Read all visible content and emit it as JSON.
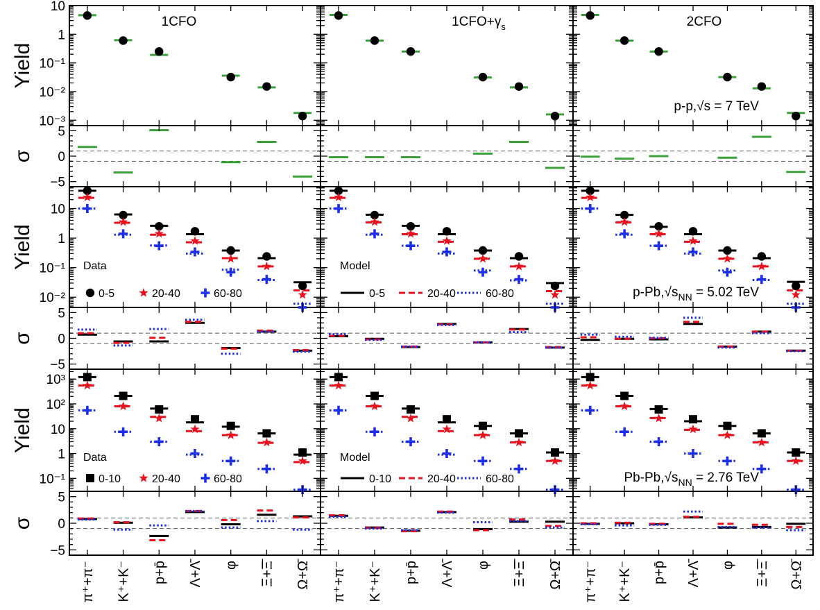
{
  "chart_data": {
    "type": "scatter",
    "columns": [
      "1CFO",
      "1CFO+γ",
      "2CFO"
    ],
    "column_title_subscripts": [
      "",
      "s",
      ""
    ],
    "categories": [
      "π⁺+π⁻",
      "K⁺+K⁻",
      "p+p̄",
      "Λ+Λ̄",
      "φ",
      "Ξ+Ξ̄",
      "Ω+Ω̄"
    ],
    "row_labels": {
      "yield": "Yield",
      "sigma": "σ"
    },
    "sigma_ticks": [
      "5",
      "0",
      "−5"
    ],
    "sigma_guides": [
      1,
      -1
    ],
    "systems": [
      {
        "id": "pp",
        "label": "p-p,√s = 7 TeV",
        "ylim": [
          0.00065,
          10
        ],
        "yticks": [
          {
            "v": 10,
            "t": "10"
          },
          {
            "v": 1,
            "t": "1"
          },
          {
            "v": 0.1,
            "t": "10⁻¹"
          },
          {
            "v": 0.01,
            "t": "10⁻²"
          },
          {
            "v": 0.001,
            "t": "10⁻³"
          }
        ],
        "data_legend_title": "",
        "model_legend_title": "",
        "data_legend": [],
        "model_legend": [],
        "data": [
          [
            4.5,
            0.6,
            0.25,
            null,
            0.032,
            0.015,
            0.0014
          ]
        ],
        "model": [
          [
            [
              4.6,
              0.62,
              0.19,
              null,
              0.036,
              0.014,
              0.0018
            ]
          ],
          [
            [
              4.7,
              0.6,
              0.25,
              null,
              0.031,
              0.014,
              0.0016
            ]
          ],
          [
            [
              4.7,
              0.6,
              0.25,
              null,
              0.032,
              0.013,
              0.0018
            ]
          ]
        ],
        "sigma": [
          [
            [
              1.8,
              -3.2,
              5.1,
              null,
              -1.2,
              2.8,
              -4.0
            ]
          ],
          [
            [
              -0.2,
              -0.2,
              -0.2,
              null,
              0.5,
              2.8,
              -2.3
            ]
          ],
          [
            [
              -0.1,
              -0.5,
              0.0,
              null,
              -0.3,
              3.8,
              -3.1
            ]
          ]
        ]
      },
      {
        "id": "ppb",
        "label": "p-Pb,√s",
        "label_sub": "NN",
        "label_rest": " = 5.02 TeV",
        "ylim": [
          0.0045,
          55
        ],
        "yticks": [
          {
            "v": 10,
            "t": "10"
          },
          {
            "v": 1,
            "t": "1"
          },
          {
            "v": 0.1,
            "t": "10⁻¹"
          },
          {
            "v": 0.01,
            "t": "10⁻²"
          }
        ],
        "data_legend_title": "Data",
        "model_legend_title": "Model",
        "data_legend": [
          "0-5",
          "20-40",
          "60-80"
        ],
        "model_legend": [
          "0-5",
          "20-40",
          "60-80"
        ],
        "data": [
          [
            40,
            6.0,
            2.5,
            1.7,
            0.38,
            0.24,
            0.024
          ],
          [
            24,
            3.5,
            1.4,
            0.8,
            0.2,
            0.11,
            0.012
          ],
          [
            10,
            1.4,
            0.55,
            0.34,
            0.07,
            0.04,
            0.0045
          ]
        ],
        "model": [
          [
            [
              40,
              6.3,
              2.6,
              1.35,
              0.38,
              0.21,
              0.032
            ],
            [
              23,
              3.3,
              1.3,
              0.72,
              0.21,
              0.11,
              0.017
            ],
            [
              10,
              1.3,
              0.56,
              0.3,
              0.085,
              0.038,
              0.006
            ]
          ],
          [
            [
              40,
              6.2,
              2.6,
              1.35,
              0.38,
              0.21,
              0.03
            ],
            [
              23,
              3.4,
              1.35,
              0.75,
              0.2,
              0.11,
              0.016
            ],
            [
              10,
              1.3,
              0.55,
              0.3,
              0.08,
              0.037,
              0.006
            ]
          ],
          [
            [
              40,
              6.1,
              2.4,
              1.35,
              0.38,
              0.21,
              0.033
            ],
            [
              23,
              3.4,
              1.35,
              0.75,
              0.2,
              0.11,
              0.017
            ],
            [
              10,
              1.3,
              0.55,
              0.3,
              0.08,
              0.038,
              0.006
            ]
          ]
        ],
        "sigma": [
          [
            [
              0.7,
              -0.6,
              -0.6,
              3.0,
              -1.9,
              1.3,
              -2.4
            ],
            [
              1.0,
              -0.9,
              0.1,
              3.2,
              -2.0,
              1.5,
              -2.3
            ],
            [
              1.7,
              -1.4,
              1.8,
              3.6,
              -3.0,
              1.3,
              -2.6
            ]
          ],
          [
            [
              0.4,
              -0.1,
              -1.7,
              2.8,
              -0.8,
              1.8,
              -1.8
            ],
            [
              0.5,
              -0.2,
              -1.6,
              2.7,
              -0.8,
              1.7,
              -1.7
            ],
            [
              0.8,
              -0.3,
              -1.6,
              2.6,
              -0.8,
              1.2,
              -1.8
            ]
          ],
          [
            [
              -0.3,
              -0.1,
              -0.2,
              2.8,
              -1.6,
              1.3,
              -2.4
            ],
            [
              0.2,
              -0.1,
              0.0,
              3.2,
              -1.6,
              1.3,
              -2.4
            ],
            [
              0.7,
              0.3,
              0.1,
              4.0,
              -1.8,
              1.0,
              -2.5
            ]
          ]
        ]
      },
      {
        "id": "pbpb",
        "label": "Pb-Pb,√s",
        "label_sub": "NN",
        "label_rest": " = 2.76 TeV",
        "ylim": [
          0.03,
          2500
        ],
        "yticks": [
          {
            "v": 1000,
            "t": "10³"
          },
          {
            "v": 100,
            "t": "10²"
          },
          {
            "v": 10,
            "t": "10"
          },
          {
            "v": 1,
            "t": "1"
          },
          {
            "v": 0.1,
            "t": "10⁻¹"
          }
        ],
        "data_legend_title": "Data",
        "model_legend_title": "Model",
        "data_legend": [
          "0-10",
          "20-40",
          "60-80"
        ],
        "model_legend": [
          "0-10",
          "20-40",
          "60-80"
        ],
        "data": [
          [
            1200,
            210,
            60,
            24,
            13,
            6.5,
            1.1
          ],
          [
            550,
            80,
            26,
            9.5,
            5.5,
            2.8,
            0.5
          ],
          [
            55,
            7.5,
            3.0,
            1.0,
            0.5,
            0.24,
            0.035
          ]
        ],
        "model": [
          [
            [
              1200,
              210,
              65,
              18,
              12,
              6.5,
              0.9
            ],
            [
              550,
              80,
              30,
              8,
              5.5,
              2.7,
              0.45
            ],
            [
              55,
              7.5,
              3.0,
              0.9,
              0.5,
              0.24,
              0.035
            ]
          ],
          [
            [
              1200,
              210,
              65,
              18,
              13,
              6.5,
              1.1
            ],
            [
              550,
              80,
              30,
              8,
              5.5,
              2.8,
              0.5
            ],
            [
              55,
              7.5,
              3.0,
              0.9,
              0.5,
              0.24,
              0.035
            ]
          ],
          [
            [
              1200,
              210,
              62,
              20,
              13,
              6.5,
              1.1
            ],
            [
              550,
              80,
              27,
              9,
              5.5,
              2.8,
              0.5
            ],
            [
              55,
              7.5,
              3.0,
              1.0,
              0.5,
              0.24,
              0.035
            ]
          ]
        ],
        "sigma": [
          [
            [
              0.8,
              0.1,
              -2.4,
              2.1,
              -0.2,
              1.6,
              1.3
            ],
            [
              0.9,
              0.2,
              -3.2,
              2.3,
              0.6,
              2.4,
              1.1
            ],
            [
              0.7,
              -1.2,
              -0.4,
              2.3,
              -0.8,
              0.4,
              -1.2
            ]
          ],
          [
            [
              1.4,
              -0.8,
              -1.4,
              2.1,
              -1.1,
              0.3,
              0.3
            ],
            [
              1.5,
              -0.9,
              -1.5,
              2.2,
              -1.3,
              0.7,
              -0.5
            ],
            [
              1.2,
              -1.0,
              -1.3,
              2.0,
              0.2,
              0.4,
              -0.8
            ]
          ],
          [
            [
              -0.1,
              0.0,
              -0.2,
              1.1,
              -0.8,
              -0.7,
              -0.1
            ],
            [
              0.0,
              0.1,
              -0.1,
              1.2,
              -0.1,
              -0.3,
              -0.7
            ],
            [
              -0.2,
              -0.4,
              -0.3,
              2.2,
              -0.7,
              -0.8,
              -1.3
            ]
          ]
        ]
      }
    ],
    "colors": {
      "cent0": "#000000",
      "cent1": "#e8111d",
      "cent2": "#1c2ee6",
      "pp_model": "#3ca03a"
    }
  }
}
